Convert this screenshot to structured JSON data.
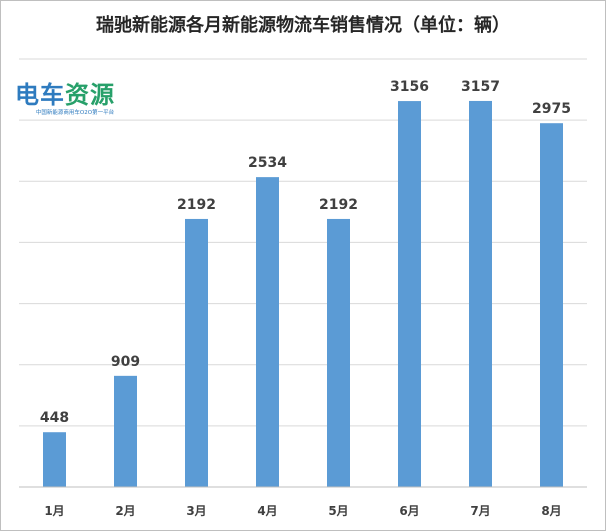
{
  "title": "瑞驰新能源各月新能源物流车销售情况（单位：辆）",
  "logo": {
    "brand_part1": "电车",
    "brand_part2": "资源",
    "tagline": "中国新能源商用车O2O第一平台"
  },
  "colors": {
    "bar": "#5b9bd5",
    "gridline": "#d9d9d9",
    "axis": "#bfbfbf",
    "text": "#404040"
  },
  "chart_data": {
    "type": "bar",
    "title": "瑞驰新能源各月新能源物流车销售情况（单位：辆）",
    "xlabel": "",
    "ylabel": "",
    "categories": [
      "1月",
      "2月",
      "3月",
      "4月",
      "5月",
      "6月",
      "7月",
      "8月"
    ],
    "values": [
      448,
      909,
      2192,
      2534,
      2192,
      3156,
      3157,
      2975
    ],
    "data_labels": [
      "448",
      "909",
      "2192",
      "2534",
      "2192",
      "3156",
      "3157",
      "2975"
    ],
    "ylim": [
      0,
      3500
    ],
    "y_tick_step": 500,
    "grid": true,
    "y_tick_labels_visible": false,
    "legend": "none"
  }
}
